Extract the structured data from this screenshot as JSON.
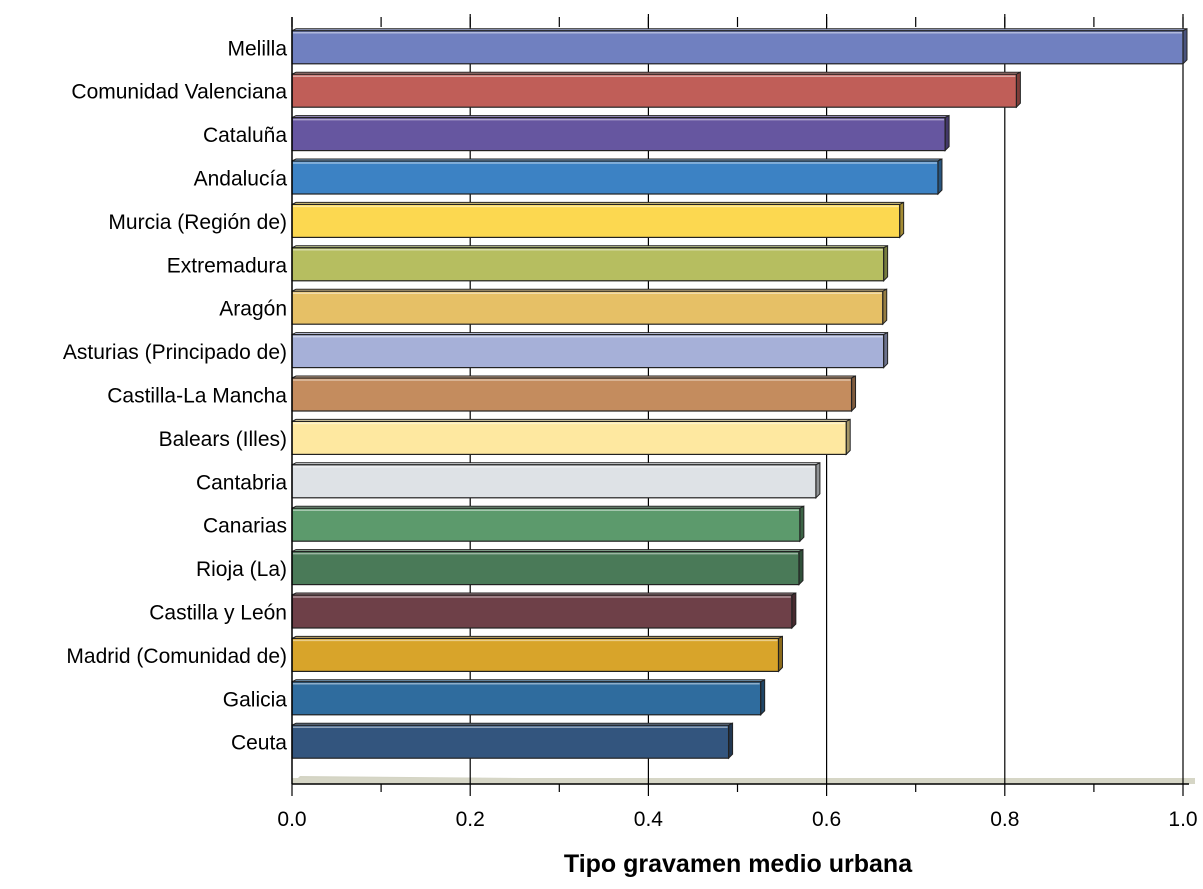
{
  "chart_data": {
    "type": "bar",
    "orientation": "horizontal",
    "title": "",
    "xlabel": "Tipo gravamen medio urbana",
    "ylabel": "",
    "xlim": [
      0,
      1.0
    ],
    "xticks": [
      "0.0",
      "0.2",
      "0.4",
      "0.6",
      "0.8",
      "1.0"
    ],
    "grid": "vertical",
    "legend": "none",
    "categories": [
      "Melilla",
      "Comunidad Valenciana",
      "Cataluña",
      "Andalucía",
      "Murcia (Región de)",
      "Extremadura",
      "Aragón",
      "Asturias (Principado de)",
      "Castilla-La Mancha",
      "Balears (Illes)",
      "Cantabria",
      "Canarias",
      "Rioja (La)",
      "Castilla y León",
      "Madrid (Comunidad de)",
      "Galicia",
      "Ceuta"
    ],
    "values": [
      1.0,
      0.813,
      0.733,
      0.725,
      0.682,
      0.664,
      0.663,
      0.664,
      0.628,
      0.622,
      0.588,
      0.57,
      0.569,
      0.561,
      0.546,
      0.526,
      0.49
    ],
    "colors": [
      "#7080c0",
      "#c05e58",
      "#6656a0",
      "#3c82c4",
      "#fcd850",
      "#b6be60",
      "#e6c066",
      "#a6b0d8",
      "#c48c5e",
      "#fee8a0",
      "#dee2e6",
      "#5c9a6c",
      "#4a7a58",
      "#6e4048",
      "#d8a42a",
      "#2f6c9e",
      "#33557e"
    ]
  }
}
